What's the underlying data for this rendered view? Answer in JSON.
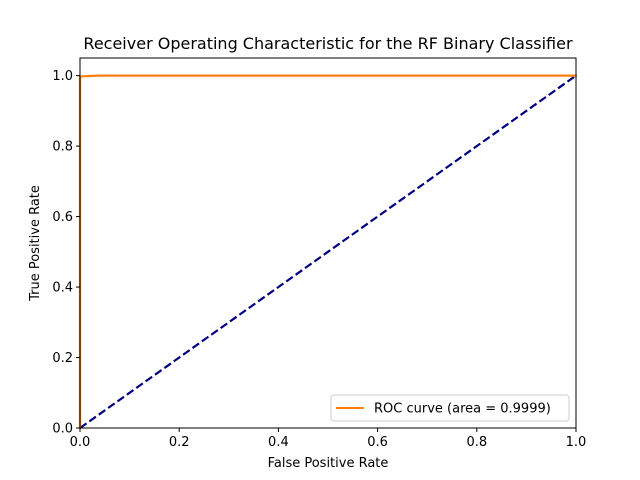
{
  "chart_data": {
    "type": "line",
    "title": "Receiver Operating Characteristic for the RF Binary Classifier",
    "xlabel": "False Positive Rate",
    "ylabel": "True Positive Rate",
    "xlim": [
      0.0,
      1.0
    ],
    "ylim": [
      0.0,
      1.05
    ],
    "x_ticks": [
      "0.0",
      "0.2",
      "0.4",
      "0.6",
      "0.8",
      "1.0"
    ],
    "y_ticks": [
      "0.0",
      "0.2",
      "0.4",
      "0.6",
      "0.8",
      "1.0"
    ],
    "grid": false,
    "legend_position": "lower right",
    "series": [
      {
        "name": "ROC curve (area = 0.9999)",
        "color": "#ff7f0e",
        "line_style": "solid",
        "x": [
          0.0,
          0.0,
          0.005,
          0.02,
          0.04,
          0.1,
          0.3,
          0.5,
          0.7,
          0.9,
          1.0
        ],
        "y": [
          0.0,
          0.997,
          0.998,
          0.999,
          1.0,
          1.0,
          1.0,
          1.0,
          1.0,
          1.0,
          1.0
        ]
      },
      {
        "name": "",
        "color": "#000080",
        "line_style": "dashed",
        "x": [
          0.0,
          1.0
        ],
        "y": [
          0.0,
          1.0
        ]
      }
    ]
  }
}
